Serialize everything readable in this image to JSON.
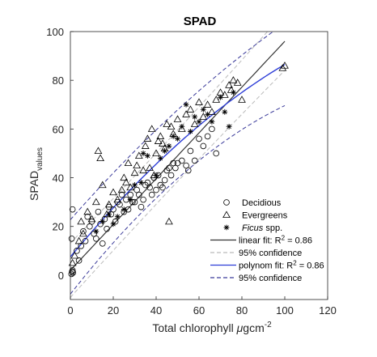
{
  "chart_data": {
    "type": "scatter",
    "title": "SPAD",
    "xlabel": {
      "main": "Total chlorophyll ",
      "unit_mu": "μ",
      "unit_rest": "gcm",
      "exp": "-2"
    },
    "ylabel": {
      "main": "SPAD",
      "sub": "values"
    },
    "xlim": [
      0,
      120
    ],
    "ylim": [
      -10,
      100
    ],
    "xticks": [
      0,
      20,
      40,
      60,
      80,
      100,
      120
    ],
    "yticks": [
      0,
      20,
      40,
      60,
      80,
      100
    ],
    "grid": false,
    "legend_position": "bottom-right",
    "colors": {
      "marker": "#000000",
      "linear_fit": "#333333",
      "linear_ci": "#bbbbbb",
      "poly_fit": "#2f3fd8",
      "poly_ci": "#3a3a9a"
    },
    "legend": [
      {
        "key": "deciduous",
        "label": "Decidious",
        "symbol": "circle"
      },
      {
        "key": "evergreens",
        "label": "Evergreens",
        "symbol": "triangle"
      },
      {
        "key": "ficus",
        "label": "Ficus",
        "label_suffix": " spp.",
        "italic": true,
        "symbol": "asterisk"
      },
      {
        "key": "linear_fit",
        "label": "linear fit: R",
        "sup": "2",
        "label_suffix": " = 0.86",
        "symbol": "solid-line"
      },
      {
        "key": "linear_ci",
        "label": "95% confidence",
        "symbol": "dashed-light"
      },
      {
        "key": "poly_fit",
        "label": "polynom fit: R",
        "sup": "2",
        "label_suffix": " = 0.86",
        "symbol": "solid-blue"
      },
      {
        "key": "poly_ci",
        "label": "95% confidence",
        "symbol": "dashed-dark"
      }
    ],
    "series": [
      {
        "name": "Decidious",
        "marker": "circle",
        "points": [
          [
            0.5,
            0.5
          ],
          [
            0.8,
            1.5
          ],
          [
            1,
            2
          ],
          [
            1.2,
            1
          ],
          [
            0.6,
            15
          ],
          [
            1,
            27
          ],
          [
            3,
            10
          ],
          [
            4,
            6
          ],
          [
            5,
            12
          ],
          [
            6,
            18
          ],
          [
            7,
            14
          ],
          [
            8,
            24
          ],
          [
            9,
            20
          ],
          [
            10,
            22
          ],
          [
            11,
            17
          ],
          [
            12,
            15
          ],
          [
            13,
            26
          ],
          [
            14,
            21
          ],
          [
            15,
            13
          ],
          [
            16,
            23
          ],
          [
            17,
            19
          ],
          [
            18,
            28
          ],
          [
            19,
            25
          ],
          [
            20,
            27
          ],
          [
            21,
            22
          ],
          [
            22,
            30
          ],
          [
            23,
            29
          ],
          [
            24,
            33
          ],
          [
            25,
            26
          ],
          [
            26,
            31
          ],
          [
            27,
            27
          ],
          [
            28,
            33
          ],
          [
            29,
            30
          ],
          [
            30,
            30
          ],
          [
            31,
            35
          ],
          [
            32,
            33
          ],
          [
            33,
            28
          ],
          [
            34,
            31
          ],
          [
            35,
            37
          ],
          [
            36,
            38
          ],
          [
            37,
            36
          ],
          [
            38,
            33
          ],
          [
            39,
            40
          ],
          [
            40,
            35
          ],
          [
            41,
            41
          ],
          [
            42,
            37
          ],
          [
            43,
            36
          ],
          [
            44,
            39
          ],
          [
            45,
            43
          ],
          [
            46,
            44
          ],
          [
            47,
            41
          ],
          [
            48,
            46
          ],
          [
            49,
            44
          ],
          [
            50,
            46
          ],
          [
            52,
            47
          ],
          [
            54,
            45
          ],
          [
            55,
            43
          ],
          [
            56,
            51
          ],
          [
            58,
            47
          ],
          [
            60,
            56
          ],
          [
            62,
            53
          ],
          [
            64,
            57
          ],
          [
            66,
            60
          ],
          [
            68,
            50
          ]
        ]
      },
      {
        "name": "Evergreens",
        "marker": "triangle",
        "points": [
          [
            1,
            5
          ],
          [
            2,
            8
          ],
          [
            4,
            14
          ],
          [
            5,
            22
          ],
          [
            6,
            17
          ],
          [
            8,
            26
          ],
          [
            10,
            23
          ],
          [
            12,
            30
          ],
          [
            13,
            51
          ],
          [
            14,
            48
          ],
          [
            15,
            37
          ],
          [
            17,
            25
          ],
          [
            18,
            29
          ],
          [
            20,
            34
          ],
          [
            22,
            31
          ],
          [
            24,
            35
          ],
          [
            25,
            40
          ],
          [
            26,
            38
          ],
          [
            27,
            46
          ],
          [
            28,
            36
          ],
          [
            30,
            42
          ],
          [
            31,
            45
          ],
          [
            32,
            49
          ],
          [
            34,
            43
          ],
          [
            35,
            53
          ],
          [
            36,
            56
          ],
          [
            37,
            44
          ],
          [
            38,
            60
          ],
          [
            39,
            41
          ],
          [
            40,
            50
          ],
          [
            41,
            55
          ],
          [
            42,
            57
          ],
          [
            43,
            54
          ],
          [
            44,
            52
          ],
          [
            45,
            62
          ],
          [
            46,
            22
          ],
          [
            47,
            61
          ],
          [
            48,
            58
          ],
          [
            50,
            64
          ],
          [
            52,
            60
          ],
          [
            54,
            66
          ],
          [
            56,
            68
          ],
          [
            58,
            62
          ],
          [
            60,
            71
          ],
          [
            62,
            65
          ],
          [
            64,
            70
          ],
          [
            66,
            67
          ],
          [
            68,
            72
          ],
          [
            70,
            75
          ],
          [
            72,
            74
          ],
          [
            74,
            78
          ],
          [
            75,
            76
          ],
          [
            76,
            80
          ],
          [
            78,
            79
          ],
          [
            80,
            72
          ],
          [
            99,
            85
          ],
          [
            100,
            86
          ]
        ]
      },
      {
        "name": "Ficus spp.",
        "marker": "asterisk",
        "points": [
          [
            12,
            18
          ],
          [
            15,
            22
          ],
          [
            18,
            25
          ],
          [
            20,
            21
          ],
          [
            22,
            24
          ],
          [
            25,
            27
          ],
          [
            28,
            31
          ],
          [
            30,
            37
          ],
          [
            33,
            38
          ],
          [
            34,
            50
          ],
          [
            36,
            49
          ],
          [
            40,
            41
          ],
          [
            42,
            48
          ],
          [
            44,
            51
          ],
          [
            46,
            53
          ],
          [
            48,
            57
          ],
          [
            50,
            56
          ],
          [
            52,
            61
          ],
          [
            54,
            70
          ],
          [
            56,
            59
          ],
          [
            58,
            65
          ],
          [
            60,
            63
          ],
          [
            62,
            68
          ],
          [
            64,
            66
          ],
          [
            66,
            63
          ],
          [
            70,
            73
          ],
          [
            72,
            67
          ],
          [
            74,
            61
          ],
          [
            76,
            75
          ]
        ]
      }
    ],
    "fits": {
      "linear": {
        "name": "linear fit",
        "intercept": 2,
        "slope": 0.94
      },
      "polynom": {
        "name": "polynom fit",
        "coefficients": [
          7.5,
          1.06,
          -0.0027
        ]
      }
    }
  }
}
